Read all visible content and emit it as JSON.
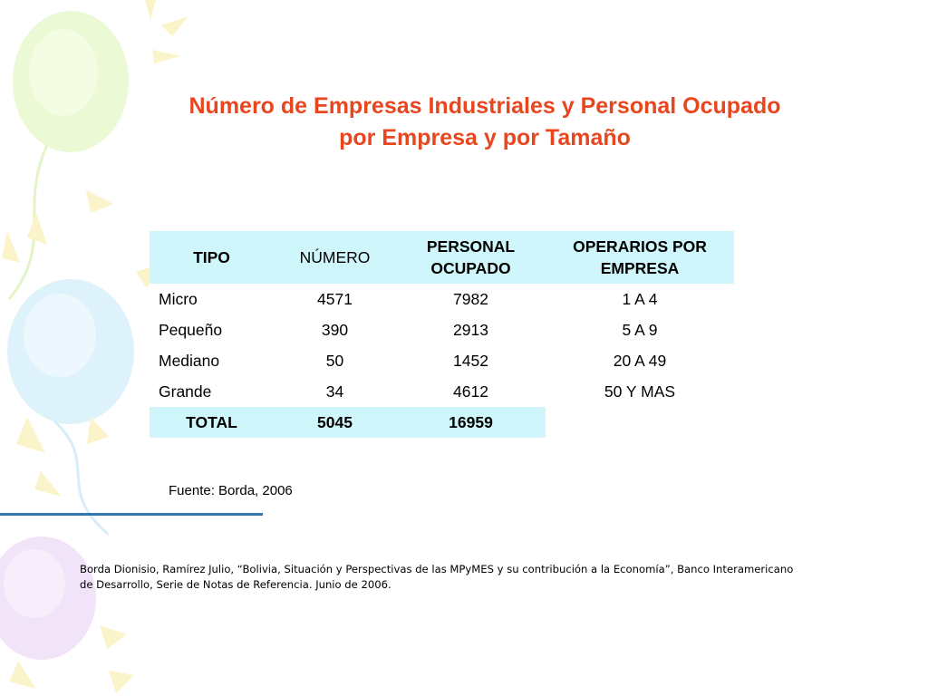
{
  "title": {
    "line1": "Número de Empresas Industriales y Personal Ocupado",
    "line2": "por Empresa y por Tamaño"
  },
  "table": {
    "headers": {
      "tipo": "TIPO",
      "numero": "NÚMERO",
      "personal_line1": "PERSONAL",
      "personal_line2": "OCUPADO",
      "operarios_line1": "OPERARIOS POR",
      "operarios_line2": "EMPRESA"
    },
    "rows": [
      {
        "tipo": "Micro",
        "numero": "4571",
        "personal": "7982",
        "operarios": "1 A 4"
      },
      {
        "tipo": "Pequeño",
        "numero": "390",
        "personal": "2913",
        "operarios": "5 A 9"
      },
      {
        "tipo": "Mediano",
        "numero": "50",
        "personal": "1452",
        "operarios": "20 A 49"
      },
      {
        "tipo": "Grande",
        "numero": "34",
        "personal": "4612",
        "operarios": "50 Y MAS"
      }
    ],
    "total": {
      "label": "TOTAL",
      "numero": "5045",
      "personal": "16959"
    }
  },
  "source": "Fuente: Borda, 2006",
  "reference": {
    "line1": "Borda Dionisio, Ramírez Julio, “Bolivia, Situación y Perspectivas de las MPyMES y su contribución a la Economía”, Banco Interamericano",
    "line2": "de Desarrollo, Serie de Notas de Referencia. Junio de 2006."
  },
  "colors": {
    "title": "#e8461e",
    "header_bg": "#cff7fb",
    "rule": "#2f78b4"
  }
}
